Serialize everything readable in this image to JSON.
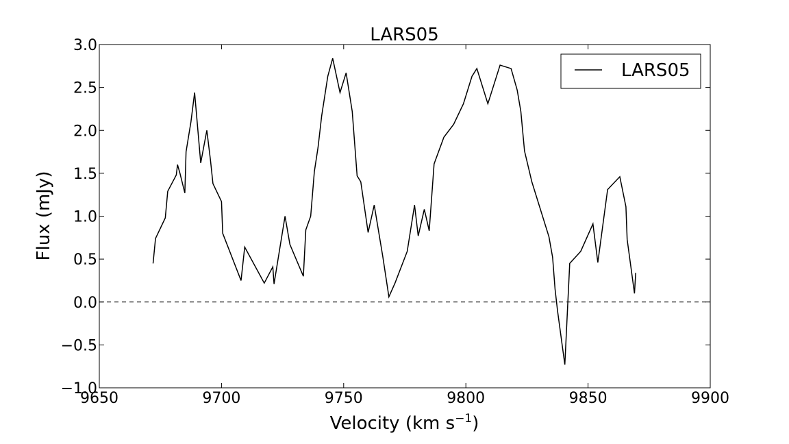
{
  "chart_data": {
    "type": "line",
    "title": "LARS05",
    "xlabel": "Velocity  (km s",
    "xlabel_superscript": "−1",
    "xlabel_suffix": ")",
    "ylabel": "Flux (mJy)",
    "xlim": [
      9650,
      9900
    ],
    "ylim": [
      -1.0,
      3.0
    ],
    "xticks": [
      9650,
      9700,
      9750,
      9800,
      9850,
      9900
    ],
    "xtick_labels": [
      "9650",
      "9700",
      "9750",
      "9800",
      "9850",
      "9900"
    ],
    "yticks": [
      -1.0,
      -0.5,
      0.0,
      0.5,
      1.0,
      1.5,
      2.0,
      2.5,
      3.0
    ],
    "ytick_labels": [
      "−1.0",
      "−0.5",
      "0.0",
      "0.5",
      "1.0",
      "1.5",
      "2.0",
      "2.5",
      "3.0"
    ],
    "grid": false,
    "legend_position": "top-right",
    "reference_line": {
      "y": 0.0,
      "style": "dashed"
    },
    "series": [
      {
        "name": "LARS05",
        "color": "#000000",
        "x": [
          9672,
          9673,
          9677,
          9678,
          9681.5,
          9682,
          9683,
          9685,
          9685.5,
          9687.5,
          9689,
          9691.5,
          9694,
          9695.5,
          9696.5,
          9700,
          9700.5,
          9708,
          9709.5,
          9717.5,
          9721,
          9721.5,
          9726,
          9728,
          9733.5,
          9734.5,
          9736.5,
          9738,
          9739.5,
          9741,
          9743.5,
          9745.5,
          9748.5,
          9751,
          9753.5,
          9755.5,
          9757,
          9760,
          9762.5,
          9766,
          9768.5,
          9771,
          9776,
          9779,
          9780.5,
          9783,
          9785,
          9787,
          9791,
          9795,
          9799,
          9802.5,
          9804.5,
          9809,
          9814,
          9818.5,
          9821,
          9822.5,
          9824,
          9827,
          9834,
          9835.5,
          9836.5,
          9837.5,
          9840.5,
          9842.5,
          9847,
          9852,
          9854,
          9858,
          9863,
          9865.5,
          9866,
          9869,
          9869.5
        ],
        "values": [
          0.45,
          0.74,
          0.98,
          1.29,
          1.48,
          1.6,
          1.5,
          1.27,
          1.75,
          2.1,
          2.44,
          1.62,
          2.0,
          1.65,
          1.38,
          1.17,
          0.8,
          0.25,
          0.64,
          0.22,
          0.41,
          0.21,
          1.0,
          0.67,
          0.3,
          0.84,
          1.0,
          1.52,
          1.8,
          2.17,
          2.63,
          2.84,
          2.44,
          2.67,
          2.22,
          1.47,
          1.4,
          0.81,
          1.13,
          0.53,
          0.06,
          0.22,
          0.59,
          1.13,
          0.77,
          1.08,
          0.83,
          1.61,
          1.92,
          2.07,
          2.31,
          2.63,
          2.72,
          2.31,
          2.76,
          2.72,
          2.47,
          2.22,
          1.76,
          1.4,
          0.76,
          0.52,
          0.15,
          -0.1,
          -0.73,
          0.45,
          0.59,
          0.91,
          0.46,
          1.31,
          1.46,
          1.11,
          0.73,
          0.1,
          0.34
        ]
      }
    ]
  }
}
